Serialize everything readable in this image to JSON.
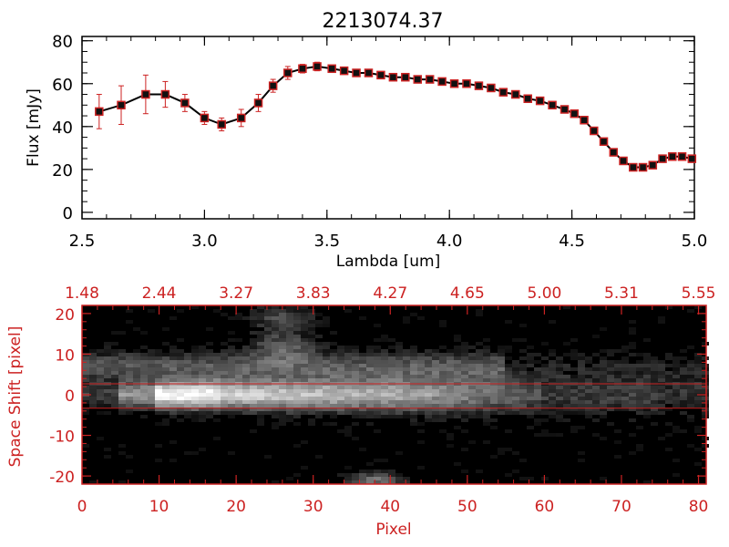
{
  "chart_data": [
    {
      "type": "line",
      "title": "2213074.37",
      "xlabel": "Lambda [um]",
      "ylabel": "Flux [mJy]",
      "xlim": [
        2.5,
        5.0
      ],
      "ylim": [
        -3,
        82
      ],
      "x_ticks": [
        "2.5",
        "3.0",
        "3.5",
        "4.0",
        "4.5",
        "5.0"
      ],
      "y_ticks": [
        "0",
        "20",
        "40",
        "60",
        "80"
      ],
      "grid": false,
      "marker_color": "#cc2222",
      "line_color": "#000000",
      "series": [
        {
          "x": [
            2.57,
            2.66,
            2.76,
            2.84,
            2.92,
            3.0,
            3.07,
            3.15,
            3.22,
            3.28,
            3.34,
            3.4,
            3.46,
            3.52,
            3.57,
            3.62,
            3.67,
            3.72,
            3.77,
            3.82,
            3.87,
            3.92,
            3.97,
            4.02,
            4.07,
            4.12,
            4.17,
            4.22,
            4.27,
            4.32,
            4.37,
            4.42,
            4.47,
            4.51,
            4.55,
            4.59,
            4.63,
            4.67,
            4.71,
            4.75,
            4.79,
            4.83,
            4.87,
            4.91,
            4.95,
            4.99
          ],
          "y": [
            47,
            50,
            55,
            55,
            51,
            44,
            41,
            44,
            51,
            59,
            65,
            67,
            68,
            67,
            66,
            65,
            65,
            64,
            63,
            63,
            62,
            62,
            61,
            60,
            60,
            59,
            58,
            56,
            55,
            53,
            52,
            50,
            48,
            46,
            43,
            38,
            33,
            28,
            24,
            21,
            21,
            22,
            25,
            26,
            26,
            25
          ],
          "yerr": [
            8,
            9,
            9,
            6,
            4,
            3,
            3,
            4,
            4,
            3,
            3,
            2,
            2,
            1,
            1,
            1,
            1,
            1,
            1,
            1,
            1,
            1,
            1,
            1,
            1,
            1,
            1,
            1,
            1,
            1,
            1,
            1,
            1,
            1,
            1,
            1,
            1,
            1,
            1,
            1,
            1,
            1,
            1,
            1,
            1,
            1
          ]
        }
      ]
    },
    {
      "type": "heatmap",
      "xlabel": "Pixel",
      "ylabel": "Space Shift [pixel]",
      "xlim": [
        0,
        81
      ],
      "ylim": [
        -22,
        22
      ],
      "x_ticks": [
        "0",
        "10",
        "20",
        "30",
        "40",
        "50",
        "60",
        "70",
        "80"
      ],
      "y_ticks": [
        "-20",
        "-10",
        "0",
        "10",
        "20"
      ],
      "top_ticks": [
        "1.48",
        "2.44",
        "3.27",
        "3.83",
        "4.27",
        "4.65",
        "5.00",
        "5.31",
        "5.55"
      ],
      "extraction_window": [
        -3.3,
        2.7
      ],
      "axis_color": "#cc2222",
      "colormap": "grayscale"
    }
  ]
}
